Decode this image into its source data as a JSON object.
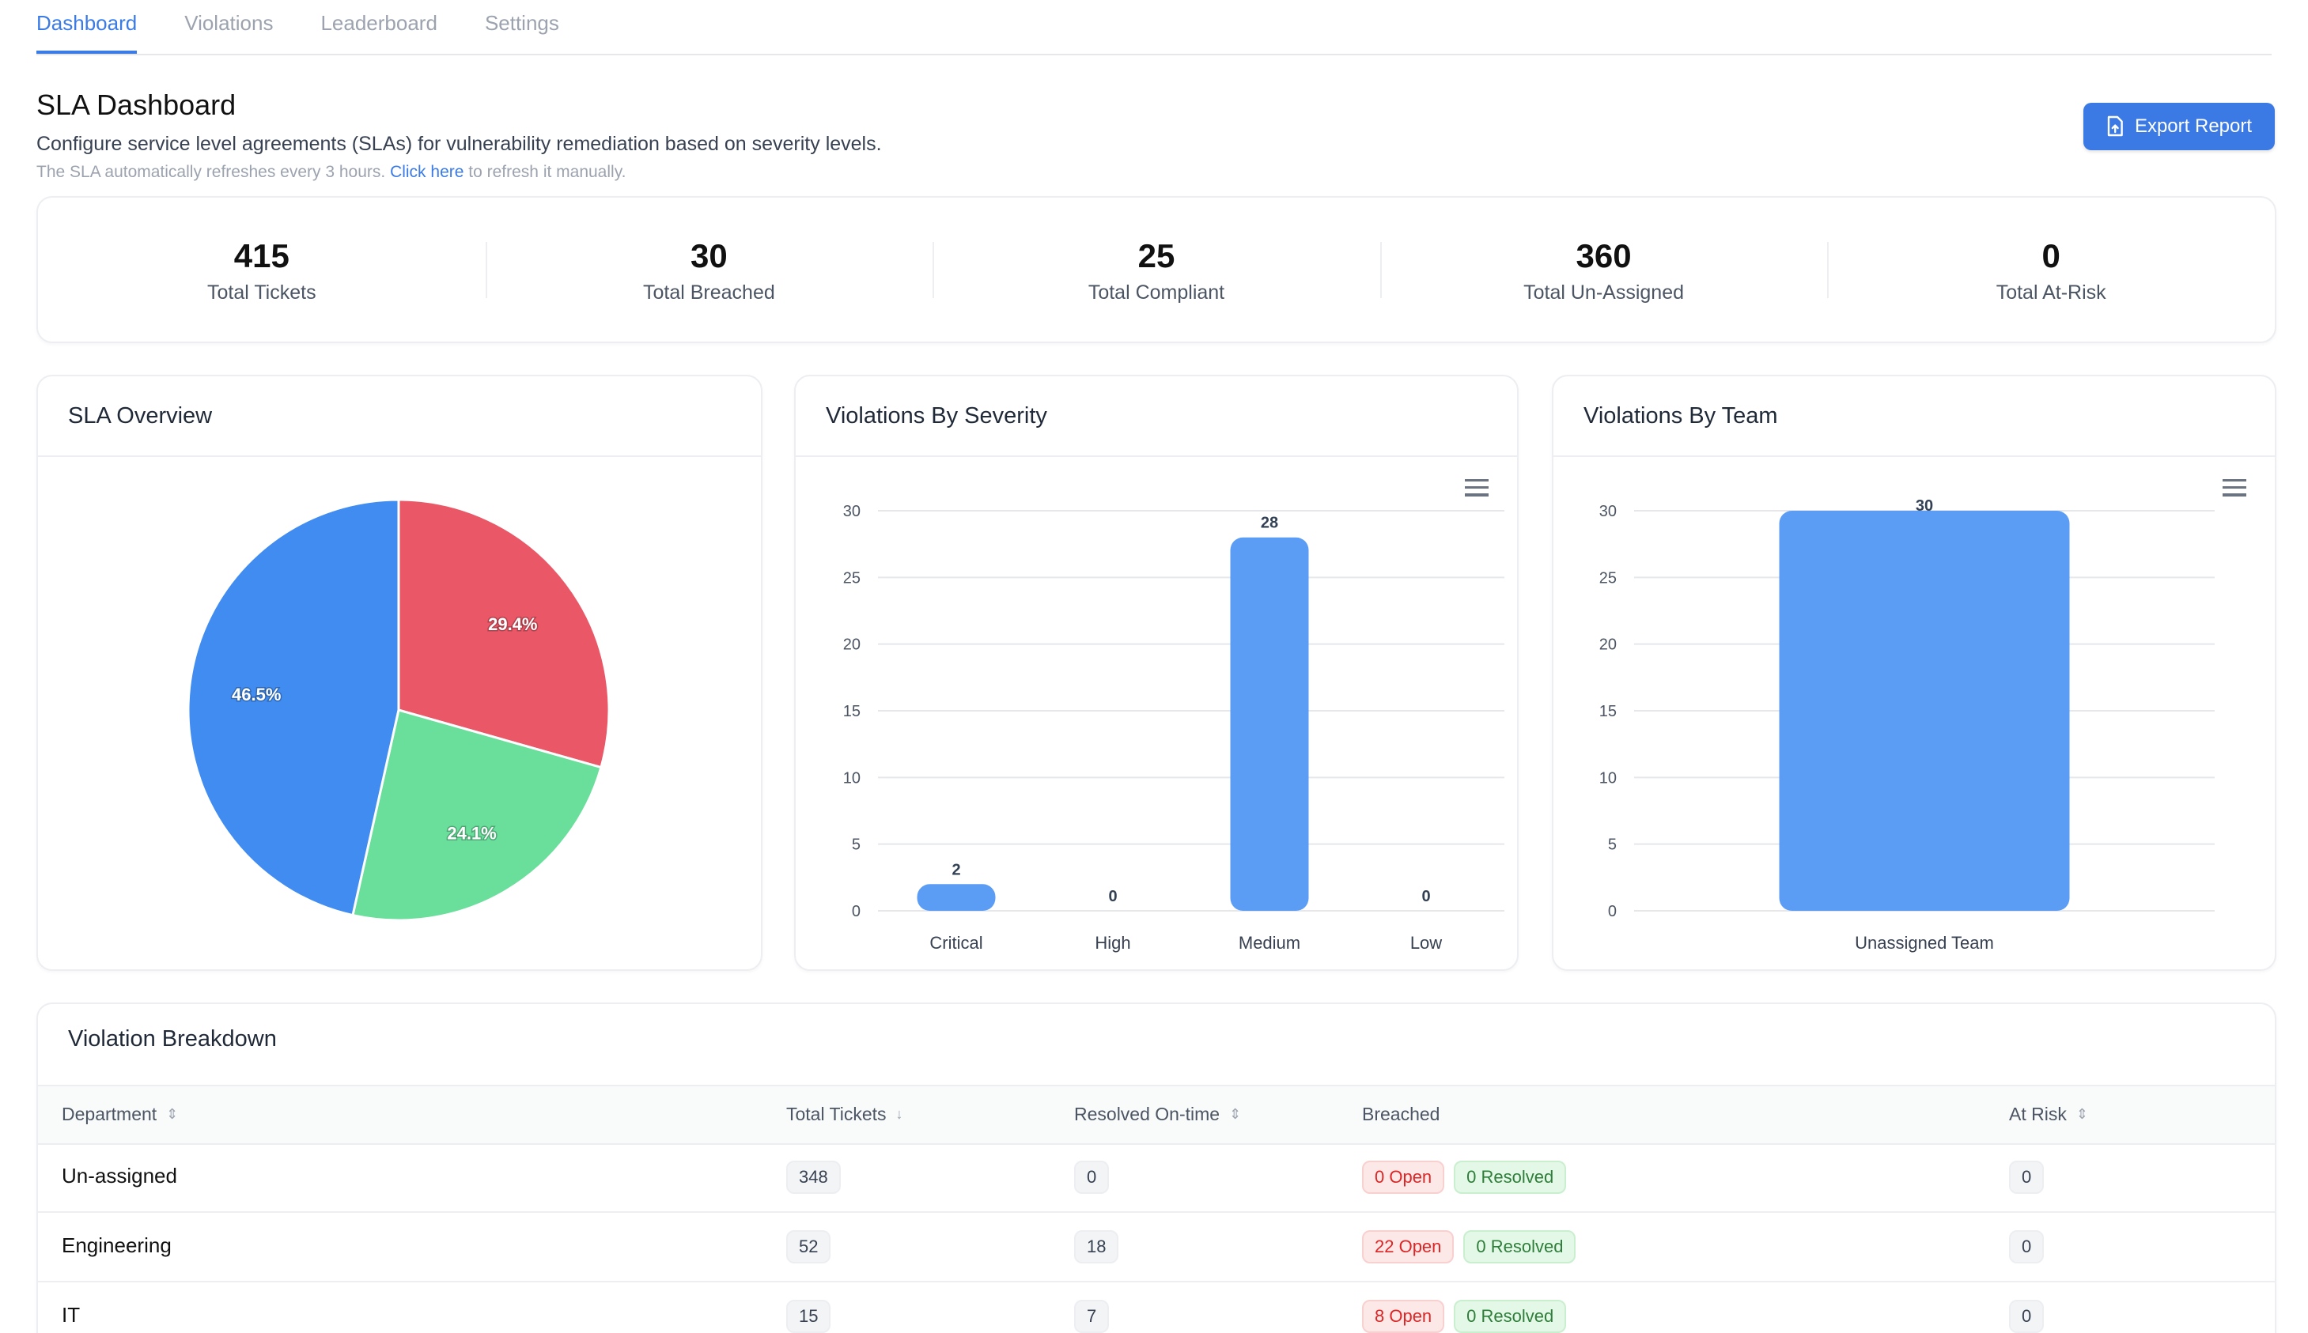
{
  "tabs": [
    {
      "label": "Dashboard",
      "active": true
    },
    {
      "label": "Violations",
      "active": false
    },
    {
      "label": "Leaderboard",
      "active": false
    },
    {
      "label": "Settings",
      "active": false
    }
  ],
  "header": {
    "title": "SLA Dashboard",
    "subtitle": "Configure service level agreements (SLAs) for vulnerability remediation based on severity levels.",
    "note_prefix": "The SLA automatically refreshes every 3 hours. ",
    "note_link": "Click here",
    "note_suffix": " to refresh it manually.",
    "export_label": "Export Report",
    "export_icon": "file-upload-icon"
  },
  "stats": [
    {
      "value": "415",
      "label": "Total Tickets"
    },
    {
      "value": "30",
      "label": "Total Breached"
    },
    {
      "value": "25",
      "label": "Total Compliant"
    },
    {
      "value": "360",
      "label": "Total Un-Assigned"
    },
    {
      "value": "0",
      "label": "Total At-Risk"
    }
  ],
  "colors": {
    "accent": "#3b79e5",
    "bar": "#5b9cf4",
    "pie": [
      "#ea5767",
      "#69df9b",
      "#418cf0"
    ]
  },
  "chart_data": [
    {
      "type": "pie",
      "title": "SLA Overview",
      "slices": [
        {
          "label": "29.4%",
          "value": 29.4,
          "color": "#ea5767"
        },
        {
          "label": "24.1%",
          "value": 24.1,
          "color": "#69df9b"
        },
        {
          "label": "46.5%",
          "value": 46.5,
          "color": "#418cf0"
        }
      ]
    },
    {
      "type": "bar",
      "title": "Violations By Severity",
      "categories": [
        "Critical",
        "High",
        "Medium",
        "Low"
      ],
      "values": [
        2,
        0,
        28,
        0
      ],
      "yticks": [
        0,
        5,
        10,
        15,
        20,
        25,
        30
      ],
      "ylim": [
        0,
        30
      ],
      "xlabel": "",
      "ylabel": "",
      "grid": true
    },
    {
      "type": "bar",
      "title": "Violations By Team",
      "categories": [
        "Unassigned Team"
      ],
      "values": [
        30
      ],
      "yticks": [
        0,
        5,
        10,
        15,
        20,
        25,
        30
      ],
      "ylim": [
        0,
        30
      ],
      "xlabel": "",
      "ylabel": "",
      "grid": true
    }
  ],
  "table": {
    "title": "Violation Breakdown",
    "columns": [
      {
        "label": "Department",
        "sort": "sortable"
      },
      {
        "label": "Total Tickets",
        "sort": "desc"
      },
      {
        "label": "Resolved On-time",
        "sort": "sortable"
      },
      {
        "label": "Breached",
        "sort": "none"
      },
      {
        "label": "At Risk",
        "sort": "sortable"
      }
    ],
    "rows": [
      {
        "department": "Un-assigned",
        "total": "348",
        "resolved": "0",
        "open": "0 Open",
        "breach_resolved": "0 Resolved",
        "at_risk": "0"
      },
      {
        "department": "Engineering",
        "total": "52",
        "resolved": "18",
        "open": "22 Open",
        "breach_resolved": "0 Resolved",
        "at_risk": "0"
      },
      {
        "department": "IT",
        "total": "15",
        "resolved": "7",
        "open": "8 Open",
        "breach_resolved": "0 Resolved",
        "at_risk": "0"
      }
    ]
  }
}
